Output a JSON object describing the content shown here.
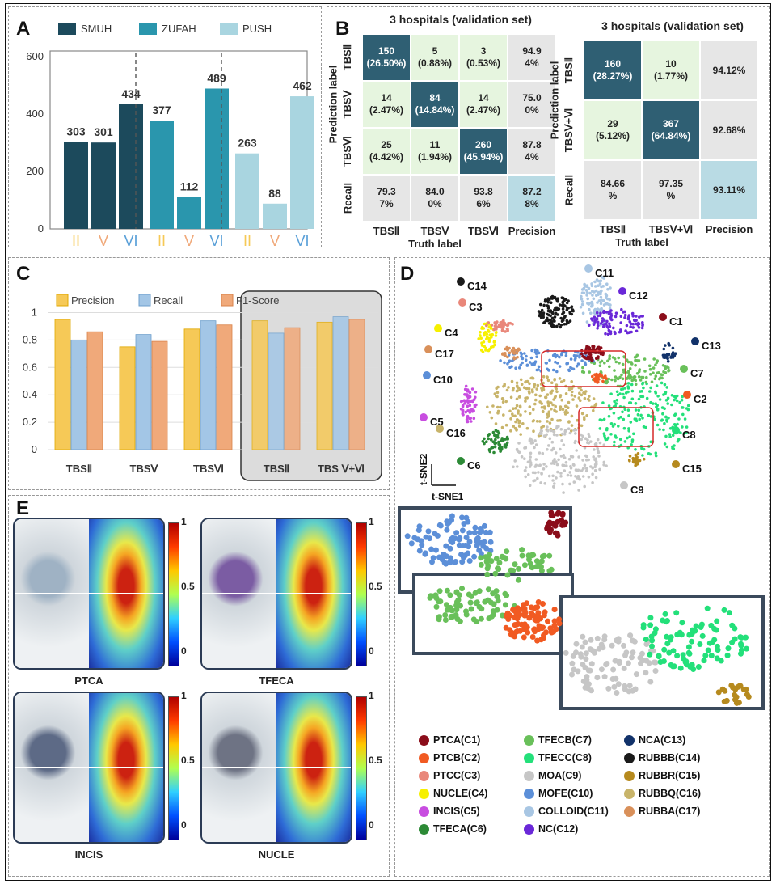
{
  "panels": {
    "a": "A",
    "b": "B",
    "c": "C",
    "d": "D",
    "e": "E"
  },
  "colors": {
    "smuh": "#1c4a5c",
    "zufah": "#2a96ad",
    "push": "#a9d5e0",
    "dark_cell": "#2f5f73",
    "light_cell": "#e6f5df",
    "gray_cell": "#e6e6e6",
    "precision_cell": "#b9dbe4",
    "precision": "#f6c957",
    "recall": "#a3c6e6",
    "f1": "#f0a97a"
  },
  "chart_data": [
    {
      "id": "A",
      "type": "bar",
      "legend": [
        "SMUH",
        "ZUFAH",
        "PUSH"
      ],
      "groups": [
        {
          "name": "SMUH",
          "categories": [
            "II",
            "V",
            "VI"
          ],
          "values": [
            303,
            301,
            434
          ]
        },
        {
          "name": "ZUFAH",
          "categories": [
            "II",
            "V",
            "VI"
          ],
          "values": [
            377,
            112,
            489
          ]
        },
        {
          "name": "PUSH",
          "categories": [
            "II",
            "V",
            "VI"
          ],
          "values": [
            263,
            88,
            462
          ]
        }
      ],
      "yticks": [
        "0",
        "200",
        "400",
        "600"
      ],
      "ylim": [
        0,
        620
      ]
    },
    {
      "id": "B1",
      "type": "table",
      "title": "3 hospitals (validation set)",
      "row_labels": [
        "TBSⅡ",
        "TBSⅤ",
        "TBSⅥ",
        "Recall"
      ],
      "col_labels": [
        "TBSⅡ",
        "TBSⅤ",
        "TBSⅥ",
        "Precision"
      ],
      "axis_y": "Prediction label",
      "axis_x": "Truth label",
      "cells": [
        [
          "150\n(26.50%)",
          "5\n(0.88%)",
          "3\n(0.53%)",
          "94.9\n4%"
        ],
        [
          "14\n(2.47%)",
          "84\n(14.84%)",
          "14\n(2.47%)",
          "75.0\n0%"
        ],
        [
          "25\n(4.42%)",
          "11\n(1.94%)",
          "260\n(45.94%)",
          "87.8\n4%"
        ],
        [
          "79.3\n7%",
          "84.0\n0%",
          "93.8\n6%",
          "87.2\n8%"
        ]
      ]
    },
    {
      "id": "B2",
      "type": "table",
      "title": "3 hospitals (validation set)",
      "row_labels": [
        "TBSⅡ",
        "TBSⅤ+Ⅵ",
        "Recall"
      ],
      "col_labels": [
        "TBSⅡ",
        "TBSⅤ+Ⅵ",
        "Precision"
      ],
      "axis_y": "Prediction label",
      "axis_x": "Truth label",
      "cells": [
        [
          "160\n(28.27%)",
          "10\n(1.77%)",
          "94.12%"
        ],
        [
          "29\n(5.12%)",
          "367\n(64.84%)",
          "92.68%"
        ],
        [
          "84.66\n%",
          "97.35\n%",
          "93.11%"
        ]
      ]
    },
    {
      "id": "C",
      "type": "bar",
      "categories": [
        "TBSⅡ",
        "TBSⅤ",
        "TBSⅥ",
        "TBSⅡ",
        "TBS Ⅴ+Ⅵ"
      ],
      "series": [
        {
          "name": "Precision",
          "values": [
            0.95,
            0.75,
            0.88,
            0.94,
            0.93
          ]
        },
        {
          "name": "Recall",
          "values": [
            0.8,
            0.84,
            0.94,
            0.85,
            0.97
          ]
        },
        {
          "name": "F1-Score",
          "values": [
            0.86,
            0.79,
            0.91,
            0.89,
            0.95
          ]
        }
      ],
      "yticks": [
        "0",
        "0.2",
        "0.4",
        "0.6",
        "0.8",
        "1"
      ],
      "ylim": [
        0,
        1.05
      ]
    }
  ],
  "tsne": {
    "axis_x": "t-SNE1",
    "axis_y": "t-SNE2",
    "clusters": [
      {
        "id": "C1",
        "name": "PTCA(C1)",
        "color": "#8b0d1a"
      },
      {
        "id": "C2",
        "name": "PTCB(C2)",
        "color": "#f15a22"
      },
      {
        "id": "C3",
        "name": "PTCC(C3)",
        "color": "#e9877a"
      },
      {
        "id": "C4",
        "name": "NUCLE(C4)",
        "color": "#f6f000"
      },
      {
        "id": "C5",
        "name": "INCIS(C5)",
        "color": "#c84de0"
      },
      {
        "id": "C6",
        "name": "TFECA(C6)",
        "color": "#2c8a36"
      },
      {
        "id": "C7",
        "name": "TFECB(C7)",
        "color": "#69c05a"
      },
      {
        "id": "C8",
        "name": "TFECC(C8)",
        "color": "#23e07a"
      },
      {
        "id": "C9",
        "name": "MOA(C9)",
        "color": "#c6c6c6"
      },
      {
        "id": "C10",
        "name": "MOFE(C10)",
        "color": "#5c8fd8"
      },
      {
        "id": "C11",
        "name": "COLLOID(C11)",
        "color": "#a8c6e3"
      },
      {
        "id": "C12",
        "name": "NC(C12)",
        "color": "#6a28d8"
      },
      {
        "id": "C13",
        "name": "NCA(C13)",
        "color": "#12326a"
      },
      {
        "id": "C14",
        "name": "RUBBB(C14)",
        "color": "#1a1a1a"
      },
      {
        "id": "C15",
        "name": "RUBBR(C15)",
        "color": "#b68a1e"
      },
      {
        "id": "C16",
        "name": "RUBBQ(C16)",
        "color": "#c8b46a"
      },
      {
        "id": "C17",
        "name": "RUBBA(C17)",
        "color": "#d9905a"
      }
    ]
  },
  "heatmaps": {
    "labels": [
      "PTCA",
      "TFECA",
      "INCIS",
      "NUCLE"
    ],
    "colorbar": [
      "1",
      "0.5",
      "0"
    ]
  }
}
